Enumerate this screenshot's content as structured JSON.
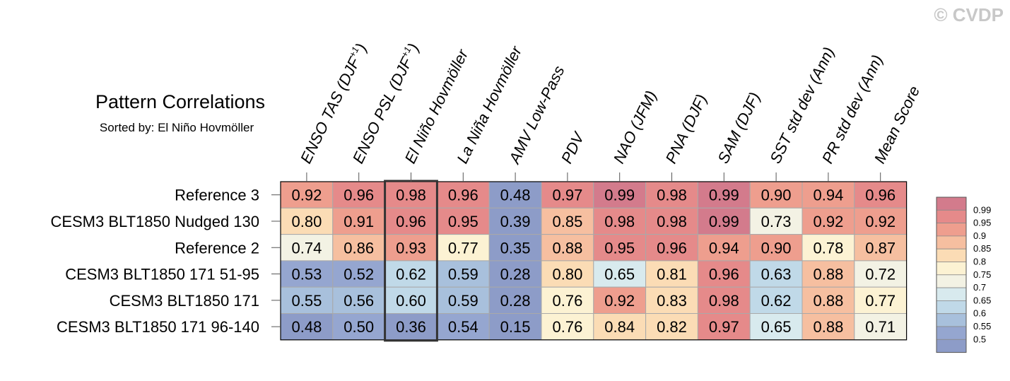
{
  "watermark": "© CVDP",
  "chart_data": {
    "type": "heatmap",
    "title": "Pattern Correlations",
    "subtitle": "Sorted by: El Niño Hovmöller",
    "columns": [
      {
        "main": "ENSO TAS (DJF",
        "sup": "+1",
        "tail": ")"
      },
      {
        "main": "ENSO PSL (DJF",
        "sup": "+1",
        "tail": ")"
      },
      {
        "main": "El Niño Hovmöller",
        "sup": "",
        "tail": ""
      },
      {
        "main": "La Niña Hovmöller",
        "sup": "",
        "tail": ""
      },
      {
        "main": "AMV Low-Pass",
        "sup": "",
        "tail": ""
      },
      {
        "main": "PDV",
        "sup": "",
        "tail": ""
      },
      {
        "main": "NAO (JFM)",
        "sup": "",
        "tail": ""
      },
      {
        "main": "PNA (DJF)",
        "sup": "",
        "tail": ""
      },
      {
        "main": "SAM (DJF)",
        "sup": "",
        "tail": ""
      },
      {
        "main": "SST std dev (Ann)",
        "sup": "",
        "tail": ""
      },
      {
        "main": "PR std dev (Ann)",
        "sup": "",
        "tail": ""
      },
      {
        "main": "Mean Score",
        "sup": "",
        "tail": ""
      }
    ],
    "rows": [
      {
        "name": "Reference 3",
        "values": [
          "0.92",
          "0.96",
          "0.98",
          "0.96",
          "0.48",
          "0.97",
          "0.99",
          "0.98",
          "0.99",
          "0.90",
          "0.94",
          "0.96"
        ]
      },
      {
        "name": "CESM3 BLT1850 Nudged 130",
        "values": [
          "0.80",
          "0.91",
          "0.96",
          "0.95",
          "0.39",
          "0.85",
          "0.98",
          "0.98",
          "0.99",
          "0.73",
          "0.92",
          "0.92"
        ]
      },
      {
        "name": "Reference 2",
        "values": [
          "0.74",
          "0.86",
          "0.93",
          "0.77",
          "0.35",
          "0.88",
          "0.95",
          "0.96",
          "0.94",
          "0.90",
          "0.78",
          "0.87"
        ]
      },
      {
        "name": "CESM3 BLT1850 171 51-95",
        "values": [
          "0.53",
          "0.52",
          "0.62",
          "0.59",
          "0.28",
          "0.80",
          "0.65",
          "0.81",
          "0.96",
          "0.63",
          "0.88",
          "0.72"
        ]
      },
      {
        "name": "CESM3 BLT1850 171",
        "values": [
          "0.55",
          "0.56",
          "0.60",
          "0.59",
          "0.28",
          "0.76",
          "0.92",
          "0.83",
          "0.98",
          "0.62",
          "0.88",
          "0.77"
        ]
      },
      {
        "name": "CESM3 BLT1850 171 96-140",
        "values": [
          "0.48",
          "0.50",
          "0.36",
          "0.54",
          "0.15",
          "0.76",
          "0.84",
          "0.82",
          "0.97",
          "0.65",
          "0.88",
          "0.71"
        ]
      }
    ],
    "highlighted_column": "El Niño Hovmöller",
    "colorbar": {
      "levels": [
        "0.99",
        "0.95",
        "0.9",
        "0.85",
        "0.8",
        "0.75",
        "0.7",
        "0.65",
        "0.6",
        "0.55",
        "0.5"
      ],
      "colors": [
        "#d37b8c",
        "#e58a8a",
        "#ee9e8e",
        "#f6bfa0",
        "#fbdcb5",
        "#fcf2d3",
        "#f3f2e4",
        "#d8eaee",
        "#c0d9e8",
        "#a8c0dc",
        "#95a6d0",
        "#8d9cc8"
      ]
    },
    "value_bins": [
      {
        "min": 0.99,
        "color": "#d37b8c"
      },
      {
        "min": 0.95,
        "color": "#e58a8a"
      },
      {
        "min": 0.9,
        "color": "#ee9e8e"
      },
      {
        "min": 0.85,
        "color": "#f6bfa0"
      },
      {
        "min": 0.8,
        "color": "#fbdcb5"
      },
      {
        "min": 0.75,
        "color": "#fcf2d3"
      },
      {
        "min": 0.7,
        "color": "#f3f2e4"
      },
      {
        "min": 0.65,
        "color": "#d8eaee"
      },
      {
        "min": 0.6,
        "color": "#c0d9e8"
      },
      {
        "min": 0.55,
        "color": "#a8c0dc"
      },
      {
        "min": 0.5,
        "color": "#95a6d0"
      },
      {
        "min": -1.0,
        "color": "#8d9cc8"
      }
    ]
  }
}
